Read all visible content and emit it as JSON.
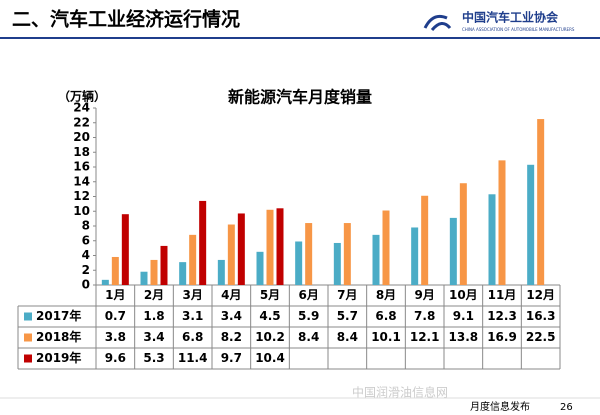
{
  "header": {
    "title": "二、汽车工业经济运行情况",
    "logo": "中国汽车工业协会",
    "logo_sub": "CHINA ASSOCIATION OF AUTOMOBILE MANUFACTURERS"
  },
  "chart_data": {
    "type": "bar",
    "title": "新能源汽车月度销量",
    "y_label": "（万辆）",
    "categories": [
      "1月",
      "2月",
      "3月",
      "4月",
      "5月",
      "6月",
      "7月",
      "8月",
      "9月",
      "10月",
      "11月",
      "12月"
    ],
    "series": [
      {
        "name": "2017年",
        "color": "#4bacc6",
        "values": [
          0.7,
          1.8,
          3.1,
          3.4,
          4.5,
          5.9,
          5.7,
          6.8,
          7.8,
          9.1,
          12.3,
          16.3
        ]
      },
      {
        "name": "2018年",
        "color": "#f79646",
        "values": [
          3.8,
          3.4,
          6.8,
          8.2,
          10.2,
          8.4,
          8.4,
          10.1,
          12.1,
          13.8,
          16.9,
          22.5
        ]
      },
      {
        "name": "2019年",
        "color": "#c00000",
        "values": [
          9.6,
          5.3,
          11.4,
          9.7,
          10.4,
          null,
          null,
          null,
          null,
          null,
          null,
          null
        ]
      }
    ],
    "ylim": [
      0,
      24
    ],
    "yticks": [
      0,
      2,
      4,
      6,
      8,
      10,
      12,
      14,
      16,
      18,
      20,
      22,
      24
    ],
    "grid": false
  },
  "footer": {
    "text": "月度信息发布",
    "page": "26",
    "watermark": "中国润滑油信息网"
  }
}
